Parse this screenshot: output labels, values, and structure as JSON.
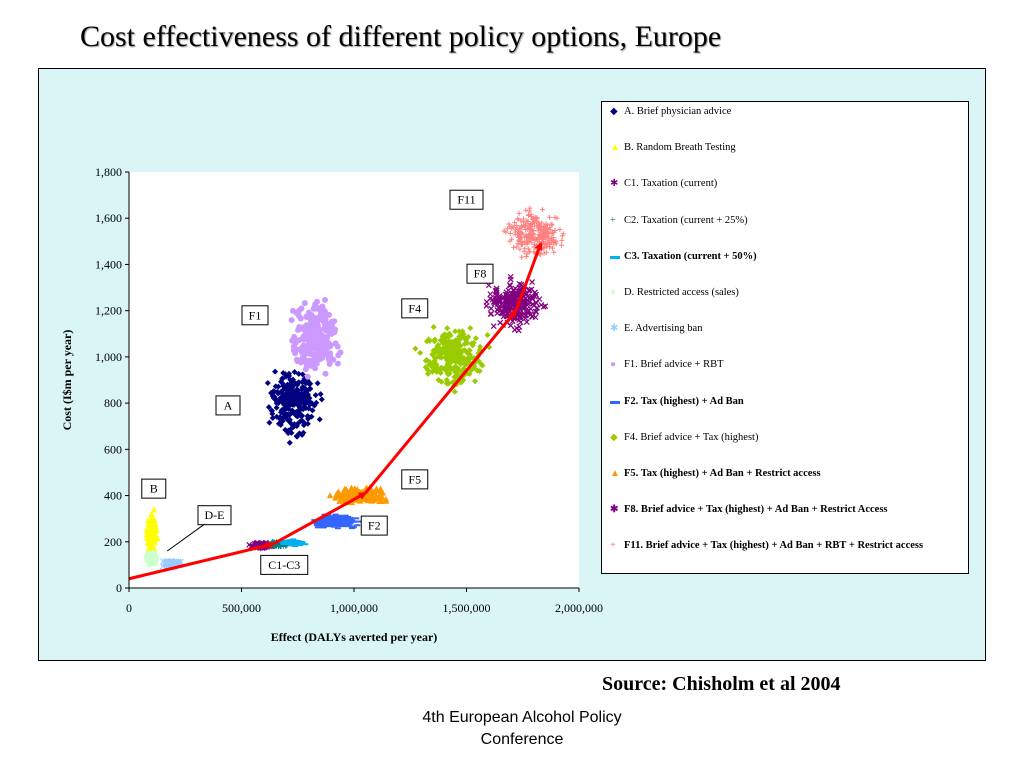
{
  "title": "Cost effectiveness of different policy options, Europe",
  "source": "Source: Chisholm et al 2004",
  "footer": {
    "line1": "4th European Alcohol Policy",
    "line2": "Conference"
  },
  "chart_data": {
    "type": "scatter",
    "xlabel": "Effect (DALYs averted per year)",
    "ylabel": "Cost (I$m per year)",
    "xlim": [
      0,
      2000000
    ],
    "ylim": [
      0,
      1800
    ],
    "x_ticks": [
      "0",
      "500,000",
      "1,000,000",
      "1,500,000",
      "2,000,000"
    ],
    "y_ticks": [
      "0",
      "200",
      "400",
      "600",
      "800",
      "1,000",
      "1,200",
      "1,400",
      "1,600",
      "1,800"
    ],
    "legend_position": "right",
    "grid": false,
    "series": [
      {
        "name": "A.    Brief physician advice",
        "marker": "diamond",
        "color": "#000080",
        "bold": false,
        "centroid": [
          730000,
          800
        ],
        "spread": [
          150000,
          200
        ]
      },
      {
        "name": "B.    Random Breath Testing",
        "marker": "triangle",
        "color": "#ffff00",
        "bold": false,
        "centroid": [
          100000,
          230
        ],
        "spread": [
          35000,
          130
        ]
      },
      {
        "name": "C1.  Taxation (current)",
        "marker": "x",
        "color": "#800080",
        "bold": false,
        "centroid": [
          590000,
          185
        ],
        "spread": [
          70000,
          20
        ]
      },
      {
        "name": "C2. Taxation (current + 25%)",
        "marker": "plus",
        "color": "#008080",
        "bold": false,
        "centroid": [
          660000,
          190
        ],
        "spread": [
          70000,
          20
        ]
      },
      {
        "name": "C3. Taxation (current + 50%)",
        "marker": "dash",
        "color": "#00b0f0",
        "bold": true,
        "centroid": [
          730000,
          195
        ],
        "spread": [
          70000,
          20
        ]
      },
      {
        "name": "D.    Restricted access (sales)",
        "marker": "circle",
        "color": "#ccffcc",
        "bold": false,
        "centroid": [
          100000,
          130
        ],
        "spread": [
          35000,
          40
        ]
      },
      {
        "name": "E.    Advertising ban",
        "marker": "x",
        "color": "#99ccff",
        "bold": false,
        "centroid": [
          190000,
          105
        ],
        "spread": [
          60000,
          25
        ]
      },
      {
        "name": "F1.   Brief advice + RBT",
        "marker": "circle",
        "color": "#cc99ff",
        "bold": false,
        "centroid": [
          830000,
          1080
        ],
        "spread": [
          160000,
          230
        ]
      },
      {
        "name": "F2.  Tax (highest) + Ad Ban",
        "marker": "dash",
        "color": "#3366ff",
        "bold": true,
        "centroid": [
          920000,
          290
        ],
        "spread": [
          140000,
          40
        ]
      },
      {
        "name": "F4.  Brief advice + Tax (highest)",
        "marker": "diamond",
        "color": "#99cc00",
        "bold": false,
        "centroid": [
          1440000,
          1000
        ],
        "spread": [
          220000,
          200
        ]
      },
      {
        "name": "F5.  Tax (highest) + Ad Ban + Restrict access",
        "marker": "triangle",
        "color": "#ff9900",
        "bold": true,
        "centroid": [
          1030000,
          400
        ],
        "spread": [
          160000,
          45
        ]
      },
      {
        "name": "F8.  Brief advice + Tax (highest) + Ad Ban + Restrict Access",
        "marker": "x",
        "color": "#800080",
        "bold": true,
        "centroid": [
          1720000,
          1230
        ],
        "spread": [
          180000,
          150
        ]
      },
      {
        "name": "F11.  Brief advice + Tax (highest) + Ad Ban + RBT + Restrict access",
        "marker": "plus",
        "color": "#ff8080",
        "bold": true,
        "centroid": [
          1800000,
          1530
        ],
        "spread": [
          180000,
          150
        ]
      }
    ],
    "expansion_path": [
      [
        0,
        40
      ],
      [
        640000,
        190
      ],
      [
        1050000,
        410
      ],
      [
        1720000,
        1200
      ],
      [
        1830000,
        1490
      ]
    ],
    "annotations": [
      {
        "text": "F11",
        "x": 1500000,
        "y": 1680
      },
      {
        "text": "F8",
        "x": 1560000,
        "y": 1360
      },
      {
        "text": "F4",
        "x": 1270000,
        "y": 1210
      },
      {
        "text": "F1",
        "x": 560000,
        "y": 1180
      },
      {
        "text": "A",
        "x": 440000,
        "y": 790
      },
      {
        "text": "F5",
        "x": 1270000,
        "y": 470
      },
      {
        "text": "B",
        "x": 110000,
        "y": 430
      },
      {
        "text": "D-E",
        "x": 380000,
        "y": 315
      },
      {
        "text": "F2",
        "x": 1090000,
        "y": 270
      },
      {
        "text": "C1-C3",
        "x": 690000,
        "y": 100
      }
    ]
  }
}
